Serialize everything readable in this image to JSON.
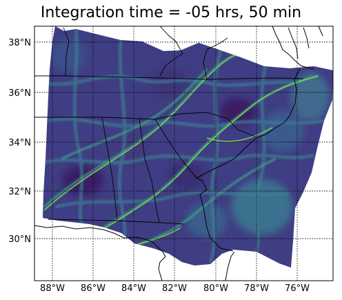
{
  "title": "Integration time = -05 hrs, 50 min",
  "map": {
    "lon_ticks": [
      "88°W",
      "86°W",
      "84°W",
      "82°W",
      "80°W",
      "78°W",
      "76°W"
    ],
    "lat_ticks": [
      "38°N",
      "36°N",
      "34°N",
      "32°N",
      "30°N"
    ],
    "field_palette": {
      "low": "#3b2a6b",
      "mid": "#3e5a8c",
      "high": "#46b26c",
      "peak": "#b8e33a"
    },
    "grid": true,
    "state_lines": true
  }
}
